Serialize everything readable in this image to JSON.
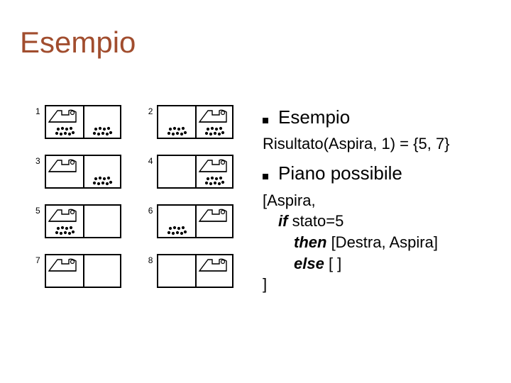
{
  "title": "Esempio",
  "states": [
    {
      "num": "1",
      "vacuum": "left",
      "dirt_left": true,
      "dirt_right": true
    },
    {
      "num": "2",
      "vacuum": "right",
      "dirt_left": true,
      "dirt_right": true
    },
    {
      "num": "3",
      "vacuum": "left",
      "dirt_left": false,
      "dirt_right": true
    },
    {
      "num": "4",
      "vacuum": "right",
      "dirt_left": false,
      "dirt_right": true
    },
    {
      "num": "5",
      "vacuum": "left",
      "dirt_left": true,
      "dirt_right": false
    },
    {
      "num": "6",
      "vacuum": "right",
      "dirt_left": true,
      "dirt_right": false
    },
    {
      "num": "7",
      "vacuum": "left",
      "dirt_left": false,
      "dirt_right": false
    },
    {
      "num": "8",
      "vacuum": "right",
      "dirt_left": false,
      "dirt_right": false
    }
  ],
  "heading1": "Esempio",
  "result_line": "Risultato(Aspira, 1) = {5, 7}",
  "heading2": "Piano possibile",
  "plan": {
    "l1": "[Aspira,",
    "l2_kw": "if",
    "l2_rest": " stato=5",
    "l3_kw": "then",
    "l3_rest": " [Destra, Aspira]",
    "l4_kw": "else",
    "l4_rest": " [ ]",
    "l5": "]"
  },
  "colors": {
    "title": "#a14d2e",
    "text": "#000000",
    "bg": "#ffffff"
  }
}
